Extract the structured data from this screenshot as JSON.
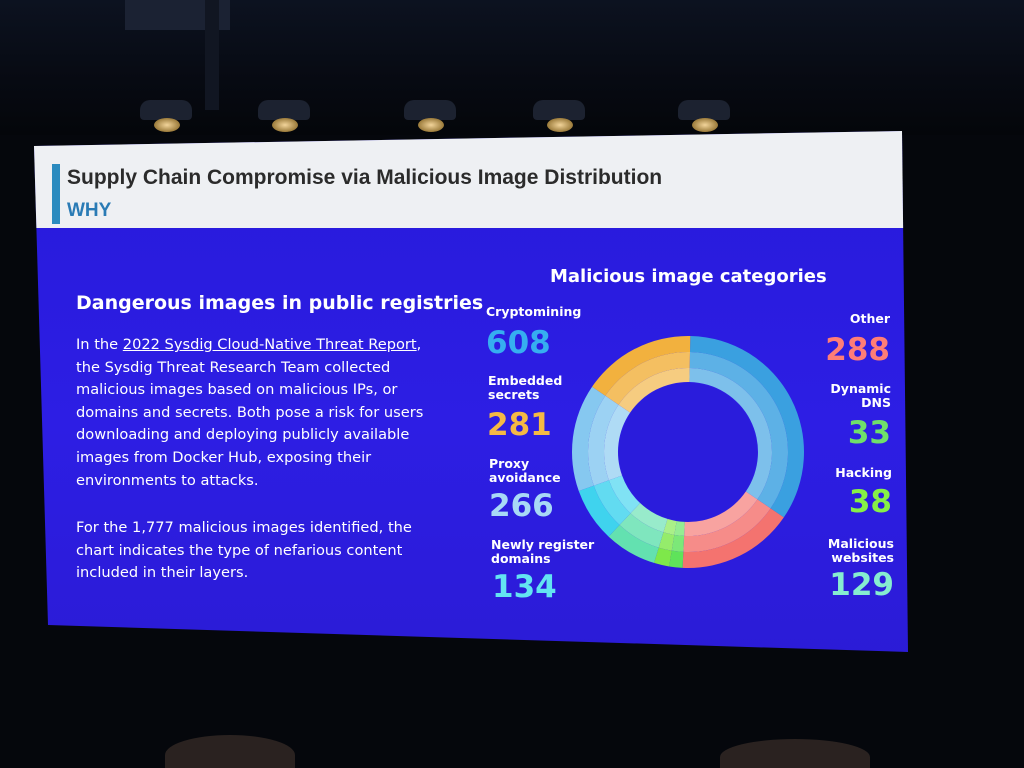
{
  "slide": {
    "title": "Supply Chain Compromise via Malicious Image Distribution",
    "subtitle": "WHY",
    "left_heading": "Dangerous images in public registries",
    "para1_prefix": "In the ",
    "para1_link": "2022 Sysdig Cloud-Native Threat Report",
    "para1_rest": ", the Sysdig Threat Research Team collected malicious images based on malicious IPs, or domains and secrets. Both pose a risk for users downloading and deploying publicly available images from Docker Hub, exposing their environments to attacks.",
    "para2": "For the 1,777 malicious images identified, the chart indicates the type of nefarious content included in their layers.",
    "chart_heading": "Malicious image categories"
  },
  "chart_data": {
    "type": "pie",
    "title": "Malicious image categories",
    "categories": [
      "Cryptomining",
      "Other",
      "Dynamic DNS",
      "Hacking",
      "Malicious websites",
      "Newly register domains",
      "Proxy avoidance",
      "Embedded secrets"
    ],
    "label_lines": [
      [
        "Cryptomining"
      ],
      [
        "Other"
      ],
      [
        "Dynamic",
        "DNS"
      ],
      [
        "Hacking"
      ],
      [
        "Malicious",
        "websites"
      ],
      [
        "Newly register",
        "domains"
      ],
      [
        "Proxy",
        "avoidance"
      ],
      [
        "Embedded",
        "secrets"
      ]
    ],
    "values": [
      608,
      288,
      33,
      38,
      129,
      134,
      266,
      281
    ],
    "display_values": [
      "608",
      "288",
      "33",
      "38",
      "129",
      "134",
      "266",
      "281"
    ],
    "colors": [
      "#3aa0e0",
      "#f4736f",
      "#5fe35a",
      "#7ee84a",
      "#63e1b0",
      "#3fd3ee",
      "#86c8f0",
      "#f2b13e"
    ],
    "value_colors": [
      "#36aef0",
      "#ff7d77",
      "#6fe06a",
      "#86f047",
      "#86edd0",
      "#63e4f2",
      "#a8d9f6",
      "#f5b944"
    ]
  }
}
